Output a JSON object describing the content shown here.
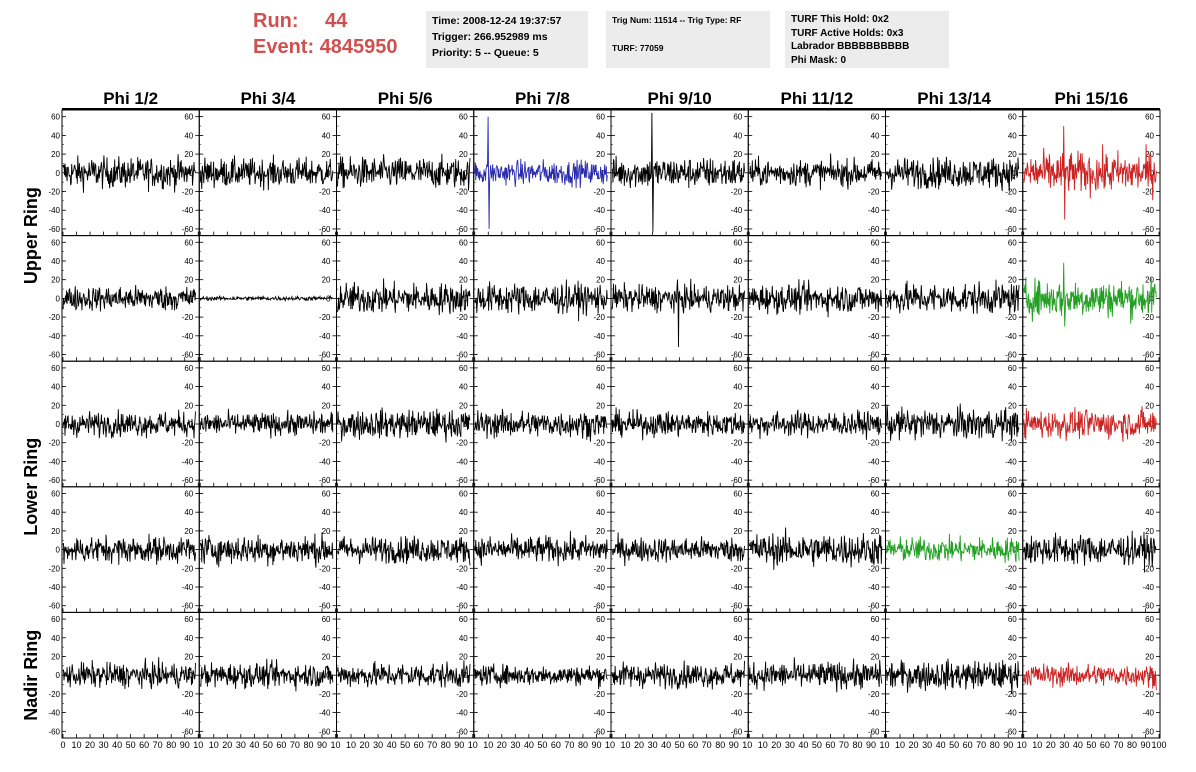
{
  "header": {
    "run_label": "Run:",
    "run_value": "44",
    "event_label": "Event:",
    "event_value": "4845950"
  },
  "time_box": {
    "time": "Time: 2008-12-24 19:37:57",
    "trigger": "Trigger: 266.952989 ms",
    "priority": "Priority: 5 -- Queue: 5"
  },
  "trig_box": {
    "trig": "Trig Num: 11514 -- Trig Type: RF",
    "turf": "TURF: 77059"
  },
  "turf_box": {
    "this_hold": "TURF This Hold: 0x2",
    "active_holds": "TURF Active Holds: 0x3",
    "labrador": "Labrador BBBBBBBBBB",
    "phi_mask": "Phi Mask: 0"
  },
  "chart_data": {
    "type": "line",
    "columns": [
      "Phi 1/2",
      "Phi 3/4",
      "Phi 5/6",
      "Phi 7/8",
      "Phi 9/10",
      "Phi 11/12",
      "Phi 13/14",
      "Phi 15/16"
    ],
    "row_groups": [
      {
        "label": "Upper Ring",
        "rows": [
          0,
          1
        ]
      },
      {
        "label": "Lower Ring",
        "rows": [
          2,
          3
        ]
      },
      {
        "label": "Nadir Ring",
        "rows": [
          4
        ]
      }
    ],
    "xlim": [
      0,
      100
    ],
    "ylim": [
      -65,
      65
    ],
    "y_ticks": [
      60,
      40,
      20,
      0,
      -20,
      -40,
      -60
    ],
    "x_ticks": [
      0,
      10,
      20,
      30,
      40,
      50,
      60,
      70,
      80,
      90,
      100
    ],
    "x_tick_labels_first": [
      "0",
      "10",
      "20",
      "30",
      "40",
      "50",
      "60",
      "70",
      "80",
      "90",
      "10"
    ],
    "x_tick_labels": [
      "10",
      "20",
      "30",
      "40",
      "50",
      "60",
      "70",
      "80",
      "90",
      "10"
    ],
    "x_tick_labels_last": [
      "10",
      "20",
      "30",
      "40",
      "50",
      "60",
      "70",
      "80",
      "90",
      "100"
    ],
    "colors": {
      "black": "#000000",
      "blue": "#2b2bb0",
      "red": "#cc2222",
      "green": "#22a022",
      "run": "#d05050"
    },
    "amplitudes": [
      [
        15,
        14,
        15,
        12,
        15,
        13,
        15,
        20
      ],
      [
        12,
        2,
        15,
        15,
        13,
        14,
        15,
        18
      ],
      [
        12,
        11,
        14,
        13,
        12,
        12,
        15,
        14
      ],
      [
        13,
        14,
        13,
        13,
        12,
        16,
        12,
        15
      ],
      [
        12,
        12,
        12,
        10,
        12,
        13,
        14,
        11
      ]
    ],
    "trace_colors": [
      [
        "black",
        "black",
        "black",
        "blue",
        "black",
        "black",
        "black",
        "red"
      ],
      [
        "black",
        "black",
        "black",
        "black",
        "black",
        "black",
        "black",
        "green"
      ],
      [
        "black",
        "black",
        "black",
        "black",
        "black",
        "black",
        "black",
        "red"
      ],
      [
        "black",
        "black",
        "black",
        "black",
        "black",
        "black",
        "green",
        "black"
      ],
      [
        "black",
        "black",
        "black",
        "black",
        "black",
        "black",
        "black",
        "red"
      ]
    ],
    "spikes": [
      [
        [
          0,
          0,
          0
        ],
        [
          0,
          0,
          0
        ],
        [
          0,
          0,
          0
        ],
        [
          1,
          60,
          -60
        ],
        [
          3,
          70,
          -63
        ],
        [
          0,
          0,
          0
        ],
        [
          0,
          0,
          0
        ],
        [
          3,
          50,
          -50
        ]
      ],
      [
        [
          0,
          0,
          0
        ],
        [
          0,
          0,
          0
        ],
        [
          0,
          0,
          0
        ],
        [
          0,
          0,
          0
        ],
        [
          5,
          -52,
          0
        ],
        [
          0,
          0,
          0
        ],
        [
          0,
          0,
          0
        ],
        [
          3,
          38,
          -30
        ]
      ],
      [
        [
          0,
          0,
          0
        ],
        [
          0,
          0,
          0
        ],
        [
          0,
          0,
          0
        ],
        [
          0,
          0,
          0
        ],
        [
          0,
          0,
          0
        ],
        [
          0,
          0,
          0
        ],
        [
          0,
          0,
          0
        ],
        [
          0,
          0,
          0
        ]
      ],
      [
        [
          0,
          0,
          0
        ],
        [
          0,
          0,
          0
        ],
        [
          0,
          0,
          0
        ],
        [
          0,
          0,
          0
        ],
        [
          0,
          0,
          0
        ],
        [
          0,
          0,
          0
        ],
        [
          0,
          0,
          0
        ],
        [
          0,
          0,
          0
        ]
      ],
      [
        [
          0,
          0,
          0
        ],
        [
          0,
          0,
          0
        ],
        [
          0,
          0,
          0
        ],
        [
          0,
          0,
          0
        ],
        [
          0,
          0,
          0
        ],
        [
          0,
          0,
          0
        ],
        [
          0,
          0,
          0
        ],
        [
          0,
          0,
          0
        ]
      ]
    ]
  }
}
